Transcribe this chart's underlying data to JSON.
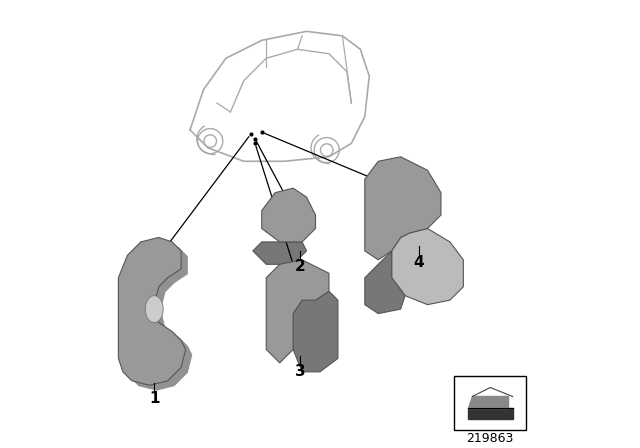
{
  "background_color": "#ffffff",
  "title": "",
  "part_number": "219863",
  "labels": [
    "1",
    "2",
    "3",
    "4"
  ],
  "car_outline_color": "#aaaaaa",
  "part_color": "#999999",
  "part_shadow_color": "#777777",
  "line_color": "#000000",
  "text_color": "#000000",
  "box_color": "#000000",
  "font_size_labels": 11,
  "font_size_partnumber": 9
}
